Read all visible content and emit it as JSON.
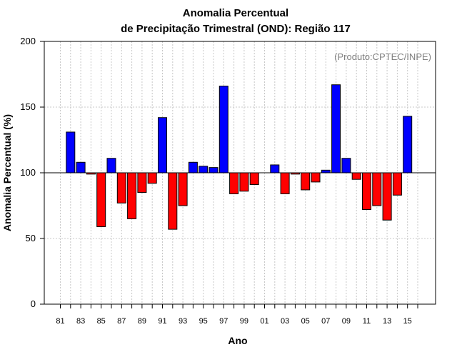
{
  "chart_data": {
    "type": "bar",
    "title_line1": "Anomalia Percentual",
    "title_line2": "de Precipitação Trimestral (OND): Região 117",
    "xlabel": "Ano",
    "ylabel": "Anomalia Percentual (%)",
    "annotation": "(Produto:CPTEC/INPE)",
    "baseline": 100,
    "ylim": [
      0,
      200
    ],
    "yticks": [
      "0",
      "50",
      "100",
      "150",
      "200"
    ],
    "above_color": "#0000ff",
    "below_color": "#ff0000",
    "categories": [
      "81",
      "82",
      "83",
      "84",
      "85",
      "86",
      "87",
      "88",
      "89",
      "90",
      "91",
      "92",
      "93",
      "94",
      "95",
      "96",
      "97",
      "98",
      "99",
      "00",
      "01",
      "02",
      "03",
      "04",
      "05",
      "06",
      "07",
      "08",
      "09",
      "10",
      "11",
      "12",
      "13",
      "14",
      "15",
      "16"
    ],
    "xtick_labels": [
      "81",
      "83",
      "85",
      "87",
      "89",
      "91",
      "93",
      "95",
      "97",
      "99",
      "01",
      "03",
      "05",
      "07",
      "09",
      "11",
      "13",
      "15"
    ],
    "values": [
      100,
      131,
      108,
      99,
      59,
      111,
      77,
      65,
      85,
      92,
      142,
      57,
      75,
      108,
      105,
      104,
      166,
      84,
      86,
      91,
      100,
      106,
      84,
      99,
      87,
      93,
      102,
      167,
      111,
      95,
      72,
      75,
      64,
      83,
      143,
      100
    ]
  }
}
